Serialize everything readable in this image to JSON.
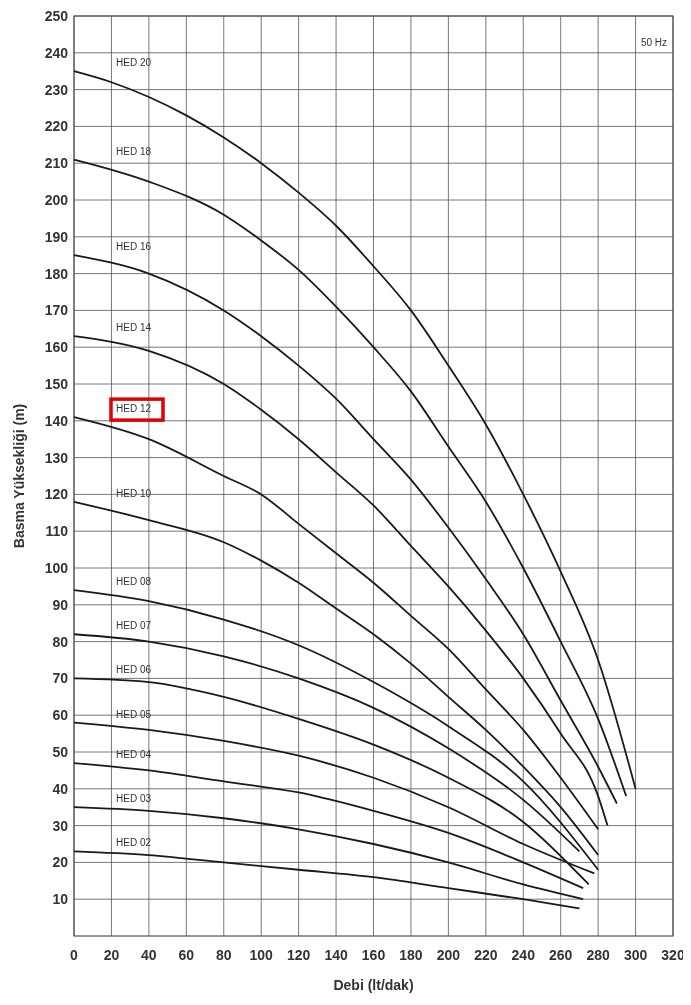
{
  "chart_data": {
    "type": "line",
    "xlabel": "Debi (lt/dak)",
    "ylabel": "Basma Yüksekliği (m)",
    "annotations": [
      "50 Hz"
    ],
    "xlim": [
      0,
      320
    ],
    "xticks": [
      0,
      20,
      40,
      60,
      80,
      100,
      120,
      140,
      160,
      180,
      200,
      220,
      240,
      260,
      280,
      300,
      320
    ],
    "ylim": [
      0,
      250
    ],
    "yticks": [
      10,
      20,
      30,
      40,
      50,
      60,
      70,
      80,
      90,
      100,
      110,
      120,
      130,
      140,
      150,
      160,
      170,
      180,
      190,
      200,
      210,
      220,
      230,
      240,
      250
    ],
    "grid": true,
    "marker": "none",
    "line_style": "solid",
    "series": [
      {
        "name": "HED 20",
        "color": "#1a1a1a",
        "x": [
          0,
          20,
          40,
          60,
          80,
          100,
          120,
          140,
          160,
          180,
          200,
          220,
          240,
          260,
          280,
          300
        ],
        "values": [
          235,
          232,
          228,
          223,
          217,
          210,
          202,
          193,
          182,
          170,
          155,
          139,
          120,
          99,
          75,
          40
        ]
      },
      {
        "name": "HED 18",
        "color": "#1a1a1a",
        "x": [
          0,
          40,
          80,
          100,
          120,
          140,
          160,
          180,
          200,
          220,
          240,
          260,
          280,
          295
        ],
        "values": [
          211,
          205,
          196,
          189,
          181,
          171,
          160,
          148,
          133,
          118,
          100,
          80,
          59,
          38
        ]
      },
      {
        "name": "HED 16",
        "color": "#1a1a1a",
        "x": [
          0,
          40,
          80,
          100,
          120,
          140,
          160,
          180,
          200,
          220,
          240,
          260,
          280,
          290
        ],
        "values": [
          185,
          180,
          170,
          163,
          155,
          146,
          135,
          124,
          111,
          97,
          82,
          64,
          46,
          36
        ]
      },
      {
        "name": "HED 14",
        "color": "#1a1a1a",
        "x": [
          0,
          40,
          80,
          100,
          120,
          140,
          160,
          180,
          200,
          220,
          240,
          260,
          280,
          285
        ],
        "values": [
          163,
          159,
          150,
          143,
          135,
          126,
          117,
          106,
          95,
          83,
          70,
          55,
          38,
          30
        ]
      },
      {
        "name": "HED 12",
        "color": "#1a1a1a",
        "x": [
          0,
          40,
          80,
          100,
          120,
          140,
          160,
          180,
          200,
          220,
          240,
          260,
          280
        ],
        "values": [
          141,
          135,
          125,
          120,
          112,
          104,
          96,
          87,
          78,
          67,
          56,
          43,
          29
        ]
      },
      {
        "name": "HED 10",
        "color": "#1a1a1a",
        "x": [
          0,
          40,
          80,
          100,
          120,
          140,
          160,
          180,
          200,
          220,
          240,
          260,
          280
        ],
        "values": [
          118,
          113,
          107,
          102,
          96,
          89,
          82,
          74,
          65,
          56,
          46,
          35,
          22
        ]
      },
      {
        "name": "HED 08",
        "color": "#1a1a1a",
        "x": [
          0,
          40,
          80,
          120,
          160,
          200,
          240,
          280
        ],
        "values": [
          94,
          91,
          86,
          79,
          69,
          57,
          42,
          18
        ]
      },
      {
        "name": "HED 07",
        "color": "#1a1a1a",
        "x": [
          0,
          40,
          80,
          120,
          160,
          200,
          240,
          270
        ],
        "values": [
          82,
          80,
          76,
          70,
          62,
          51,
          37,
          23
        ]
      },
      {
        "name": "HED 06",
        "color": "#1a1a1a",
        "x": [
          0,
          40,
          80,
          120,
          160,
          200,
          240,
          275
        ],
        "values": [
          70,
          69,
          65,
          59,
          52,
          43,
          31,
          14
        ]
      },
      {
        "name": "HED 05",
        "color": "#1a1a1a",
        "x": [
          0,
          40,
          80,
          120,
          160,
          200,
          240,
          278
        ],
        "values": [
          58,
          56,
          53,
          49,
          43,
          35,
          25,
          17
        ]
      },
      {
        "name": "HED 04",
        "color": "#1a1a1a",
        "x": [
          0,
          40,
          80,
          120,
          160,
          200,
          240,
          272
        ],
        "values": [
          47,
          45,
          42,
          39,
          34,
          28,
          20,
          13
        ]
      },
      {
        "name": "HED 03",
        "color": "#1a1a1a",
        "x": [
          0,
          40,
          80,
          120,
          160,
          200,
          240,
          272
        ],
        "values": [
          35,
          34,
          32,
          29,
          25,
          20,
          14,
          10
        ]
      },
      {
        "name": "HED 02",
        "color": "#1a1a1a",
        "x": [
          0,
          40,
          80,
          120,
          160,
          200,
          240,
          270
        ],
        "values": [
          23,
          22,
          20,
          18,
          16,
          13,
          10,
          7.5
        ]
      }
    ]
  }
}
